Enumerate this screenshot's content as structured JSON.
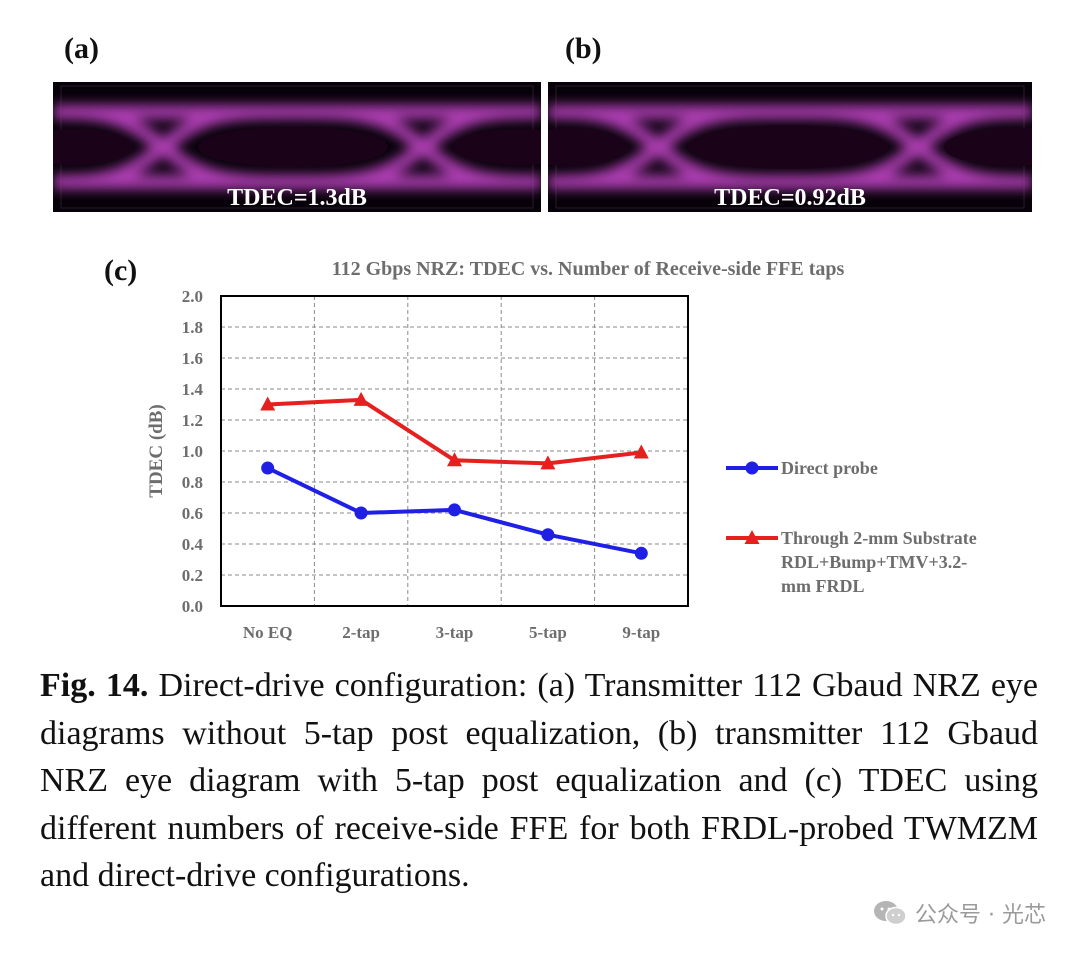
{
  "panels": {
    "a": {
      "label": "(a)",
      "caption": "TDEC=1.3dB"
    },
    "b": {
      "label": "(b)",
      "caption": "TDEC=0.92dB"
    },
    "c": {
      "label": "(c)"
    }
  },
  "chart_data": {
    "type": "line",
    "title": "112 Gbps NRZ: TDEC vs. Number of Receive-side FFE taps",
    "xlabel": "",
    "ylabel": "TDEC (dB)",
    "categories": [
      "No EQ",
      "2-tap",
      "3-tap",
      "5-tap",
      "9-tap"
    ],
    "ylim": [
      0,
      2.0
    ],
    "yticks": [
      "0.0",
      "0.2",
      "0.4",
      "0.6",
      "0.8",
      "1.0",
      "1.2",
      "1.4",
      "1.6",
      "1.8",
      "2.0"
    ],
    "grid": true,
    "legend_position": "right",
    "series": [
      {
        "name": "Direct probe",
        "values": [
          0.89,
          0.6,
          0.62,
          0.46,
          0.34
        ],
        "color": "#1f1fe6",
        "marker": "circle"
      },
      {
        "name": "Through 2-mm Substrate RDL+Bump+TMV+3.2-mm FRDL",
        "legend_lines": [
          "Through 2-mm Substrate",
          "RDL+Bump+TMV+3.2-",
          "mm FRDL"
        ],
        "values": [
          1.3,
          1.33,
          0.94,
          0.92,
          0.99
        ],
        "color": "#e61f1f",
        "marker": "triangle"
      }
    ]
  },
  "caption": {
    "fig_label": "Fig. 14.",
    "text": "Direct-drive configuration: (a) Transmitter 112 Gbaud NRZ eye diagrams without 5-tap post equalization, (b) transmitter 112 Gbaud NRZ eye diagram with 5-tap post equalization and (c) TDEC using different numbers of receive-side FFE for both FRDL-probed TWMZM and direct-drive configurations."
  },
  "watermark": {
    "text": "公众号 · 光芯",
    "icon": "wechat-icon"
  }
}
